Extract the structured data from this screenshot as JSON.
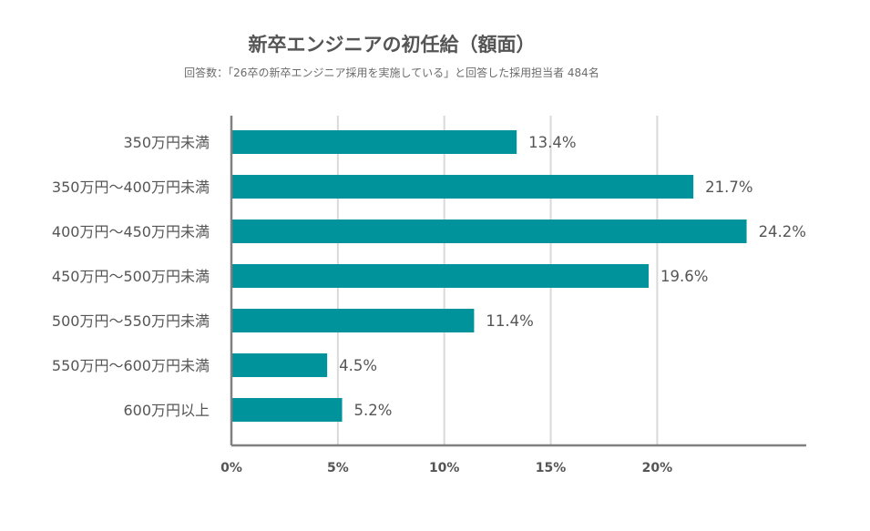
{
  "chart_data": {
    "type": "bar",
    "orientation": "horizontal",
    "title": "新卒エンジニアの初任給（額面）",
    "subtitle": "回答数：「26卒の新卒エンジニア採用を実施している」と回答した採用担当者 484名",
    "categories": [
      "350万円未満",
      "350万円〜400万円未満",
      "400万円〜450万円未満",
      "450万円〜500万円未満",
      "500万円〜550万円未満",
      "550万円〜600万円未満",
      "600万円以上"
    ],
    "values": [
      13.4,
      21.7,
      24.2,
      19.6,
      11.4,
      4.5,
      5.2
    ],
    "value_labels": [
      "13.4%",
      "21.7%",
      "24.2%",
      "19.6%",
      "11.4%",
      "4.5%",
      "5.2%"
    ],
    "xlim": [
      0,
      27
    ],
    "xticks": [
      0,
      5,
      10,
      15,
      20
    ],
    "xtick_labels": [
      "0%",
      "5%",
      "10%",
      "15%",
      "20%"
    ],
    "xlabel": "",
    "ylabel": "",
    "grid": "vertical",
    "legend": "none",
    "colors": {
      "bar": "#00939b",
      "grid": "#d9d9d9",
      "axis": "#808080",
      "text": "#555555"
    }
  }
}
